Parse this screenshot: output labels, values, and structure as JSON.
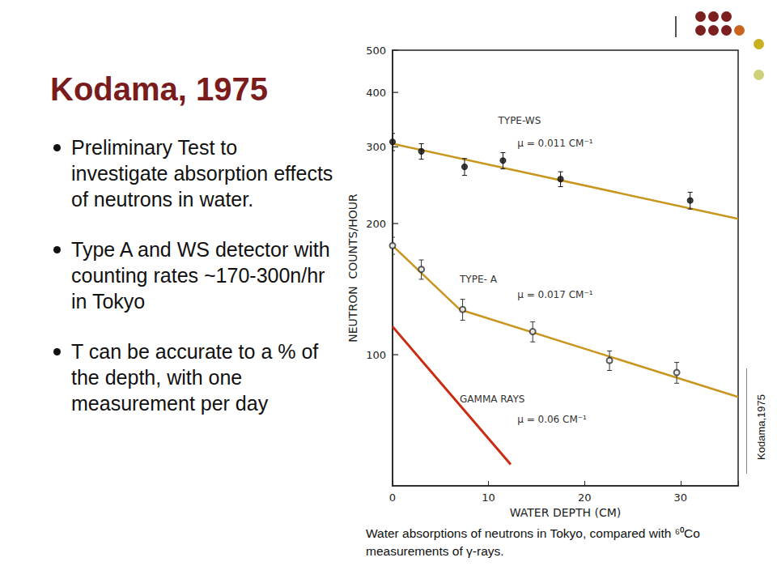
{
  "slide": {
    "title": "Kodama, 1975",
    "bullets": [
      "Preliminary Test to investigate absorption effects of neutrons in water.",
      "Type A and WS detector with counting rates ~170-300n/hr in Tokyo",
      "T can be accurate to a % of the depth, with one measurement per day"
    ],
    "caption": "Water absorptions of neutrons in Tokyo, compared with ⁶⁰Co measurements of γ-rays.",
    "credit": "Kodama,1975"
  },
  "chart_data": {
    "type": "scatter",
    "x_label": "WATER DEPTH (CM)",
    "y_label": "NEUTRON  COUNTS/HOUR",
    "log": "y",
    "grid": false,
    "xlim": [
      0,
      36
    ],
    "ylim": [
      50,
      500
    ],
    "xticks": [
      0,
      10,
      20,
      30
    ],
    "yticks": [
      100,
      200,
      300,
      400,
      500
    ],
    "series": [
      {
        "name": "TYPE-WS",
        "type": "scatter",
        "marker": "circle",
        "color": "#111111",
        "x": [
          0,
          3,
          7.5,
          11.5,
          17.5,
          31
        ],
        "values": [
          308,
          293,
          270,
          279,
          253,
          226
        ],
        "errors": [
          14,
          12,
          12,
          12,
          10,
          10
        ],
        "fit": {
          "color": "#c8961e",
          "line_style": "solid",
          "x": [
            0,
            36
          ],
          "values": [
            305,
            205
          ]
        }
      },
      {
        "name": "TYPE- A",
        "type": "scatter",
        "marker": "open_circle",
        "color": "#333333",
        "x": [
          0,
          3,
          7.3,
          14.6,
          22.6,
          29.6
        ],
        "values": [
          178,
          157,
          127,
          113,
          97,
          91
        ],
        "errors": [
          8,
          8,
          7,
          6,
          5,
          5
        ],
        "fit": {
          "color": "#c8961e",
          "line_style": "solid",
          "x": [
            0,
            7,
            36
          ],
          "values": [
            178,
            127,
            80
          ]
        }
      },
      {
        "name": "GAMMA RAYS",
        "type": "line",
        "color": "#cc2a12",
        "line_style": "solid",
        "x": [
          0,
          12.3
        ],
        "values": [
          116,
          56
        ]
      }
    ],
    "annotations": [
      {
        "text": "TYPE-WS",
        "x": 11,
        "y": 345
      },
      {
        "text": "μ = 0.011 CM⁻¹",
        "x": 13,
        "y": 305
      },
      {
        "text": "TYPE- A",
        "x": 7,
        "y": 149
      },
      {
        "text": "μ = 0.017 CM⁻¹",
        "x": 13,
        "y": 137
      },
      {
        "text": "GAMMA RAYS",
        "x": 7,
        "y": 79
      },
      {
        "text": "μ = 0.06 CM⁻¹",
        "x": 13,
        "y": 71
      }
    ]
  }
}
